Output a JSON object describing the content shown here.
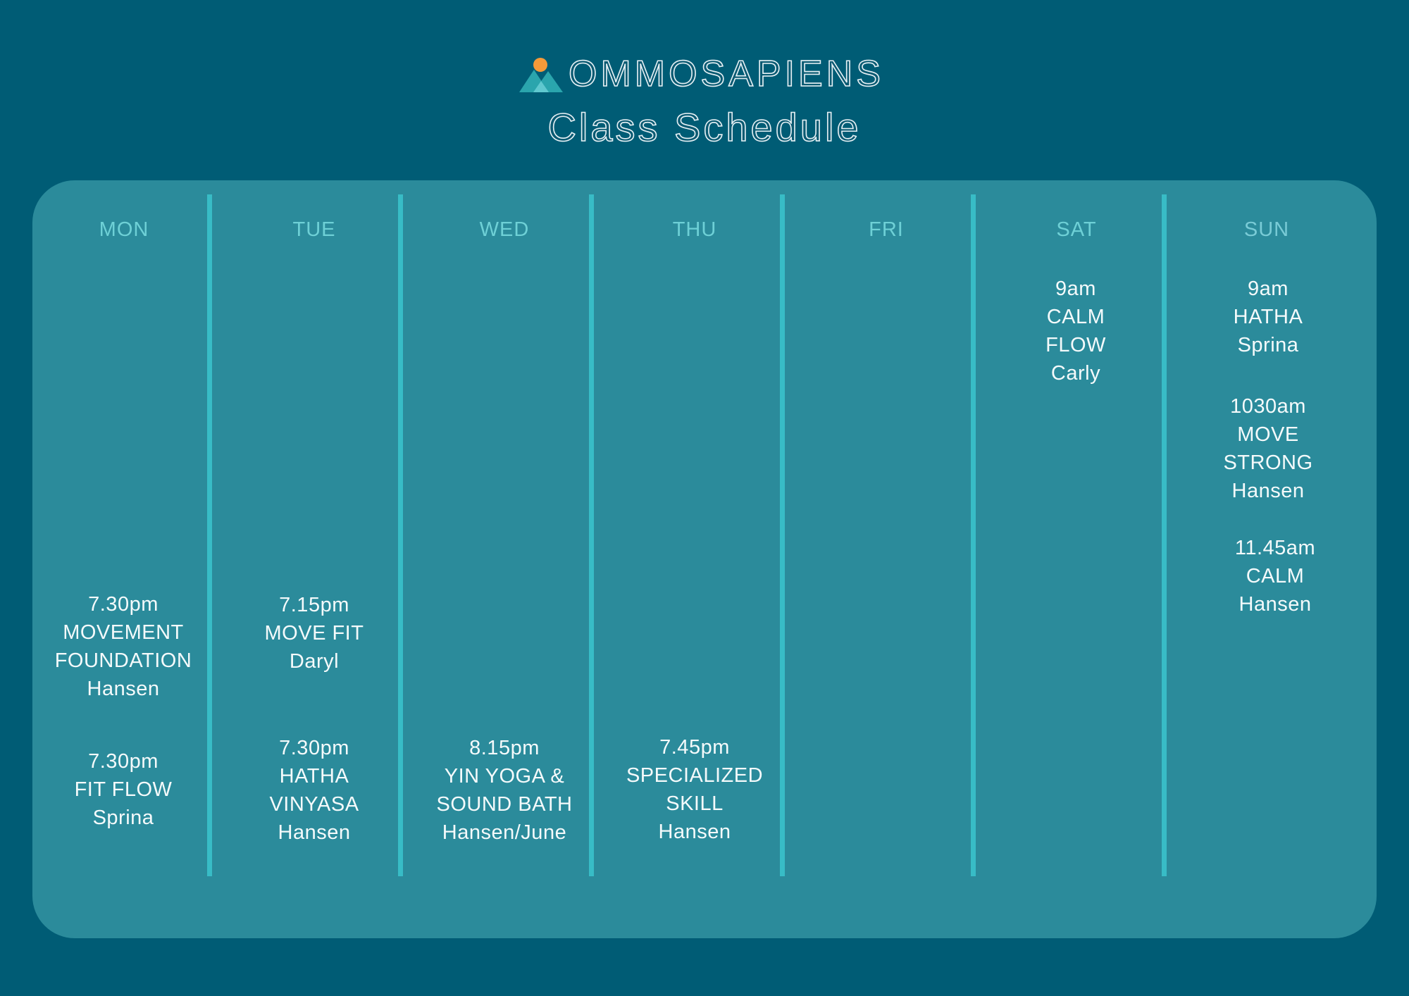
{
  "brand": {
    "name": "OMMOSAPIENS",
    "sun_color": "#f59a39",
    "mountain_colors": [
      "#2aa5ad",
      "#5fc8cf"
    ]
  },
  "title": "Class Schedule",
  "colors": {
    "background": "#005c75",
    "panel": "#2b8b9b",
    "divider": "#38bcc6",
    "day_label": "#6ed0d6",
    "class_text": "#f4fafb"
  },
  "days": [
    "MON",
    "TUE",
    "WED",
    "THU",
    "FRI",
    "SAT",
    "SUN"
  ],
  "schedule": {
    "mon": [
      {
        "time": "7.30pm",
        "name": [
          "MOVEMENT",
          "FOUNDATION"
        ],
        "instructor": "Hansen"
      },
      {
        "time": "7.30pm",
        "name": [
          "FIT FLOW"
        ],
        "instructor": "Sprina"
      }
    ],
    "tue": [
      {
        "time": "7.15pm",
        "name": [
          "MOVE FIT"
        ],
        "instructor": "Daryl"
      },
      {
        "time": "7.30pm",
        "name": [
          "HATHA",
          "VINYASA"
        ],
        "instructor": "Hansen"
      }
    ],
    "wed": [
      {
        "time": "8.15pm",
        "name": [
          "YIN YOGA &",
          "SOUND BATH"
        ],
        "instructor": "Hansen/June"
      }
    ],
    "thu": [
      {
        "time": "7.45pm",
        "name": [
          "SPECIALIZED",
          "SKILL"
        ],
        "instructor": "Hansen"
      }
    ],
    "fri": [],
    "sat": [
      {
        "time": "9am",
        "name": [
          "CALM",
          "FLOW"
        ],
        "instructor": "Carly"
      }
    ],
    "sun": [
      {
        "time": "9am",
        "name": [
          "HATHA"
        ],
        "instructor": "Sprina"
      },
      {
        "time": "1030am",
        "name": [
          "MOVE",
          "STRONG"
        ],
        "instructor": "Hansen"
      },
      {
        "time": "11.45am",
        "name": [
          "CALM"
        ],
        "instructor": "Hansen"
      }
    ]
  }
}
